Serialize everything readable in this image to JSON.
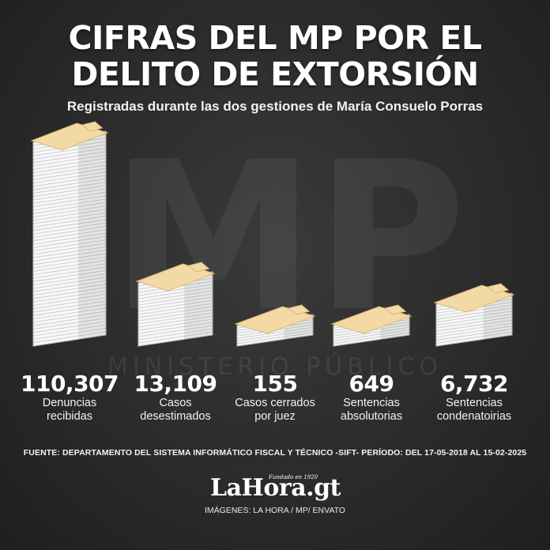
{
  "header": {
    "title_line1": "CIFRAS DEL MP POR EL",
    "title_line2": "DELITO DE EXTORSIÓN",
    "subtitle": "Registradas durante las dos gestiones de María Consuelo Porras"
  },
  "watermark": {
    "letters": "MP",
    "text": "MINISTERIO PÚBLICO"
  },
  "chart_data": {
    "type": "bar",
    "title": "CIFRAS DEL MP POR EL DELITO DE EXTORSIÓN",
    "subtitle": "Registradas durante las dos gestiones de María Consuelo Porras",
    "categories": [
      "Denuncias\nrecibidas",
      "Casos\ndesestimados",
      "Casos cerrados\npor juez",
      "Sentencias\nabsolutorias",
      "Sentencias\ncondenatoirias"
    ],
    "values": [
      110307,
      13109,
      155,
      649,
      6732
    ],
    "value_labels": [
      "110,307",
      "13,109",
      "155",
      "649",
      "6,732"
    ],
    "mark": "stack-of-folders",
    "colors": {
      "folder": "#f3d9a4",
      "paper": "#f7f7f7",
      "paper_edge": "#b9b9b9",
      "background": "#2b2b2b",
      "text": "#ffffff"
    }
  },
  "footer": {
    "source": "FUENTE: DEPARTAMENTO DEL SISTEMA INFORMÁTICO FISCAL Y TÉCNICO -SIFT- PERÍODO: DEL 17-05-2018 AL 15-02-2025",
    "logo_text": "LaHora.gt",
    "logo_tagline": "Fundado en 1920",
    "credits": "IMÁGENES: LA HORA / MP/ ENVATO"
  }
}
